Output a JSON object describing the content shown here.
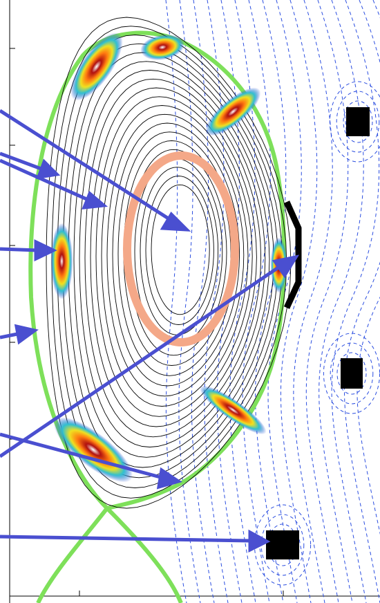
{
  "diagram": {
    "colors": {
      "background": "#ffffff",
      "axis": "#000000",
      "flux_solid": "#000000",
      "flux_dashed": "#2a4de0",
      "separatrix": "#7ee05a",
      "ring": "#f4a888",
      "arrow": "#4a4fd0",
      "coil": "#000000",
      "antenna": "#000000",
      "hot_core": "#b01010",
      "hot_mid": "#f0d020",
      "hot_outer": "#2040d0"
    },
    "icons": {
      "coil": "square-coil-icon",
      "antenna": "bracket-antenna-icon",
      "arrow": "arrow-icon"
    },
    "elements": {
      "flux_surfaces": 20,
      "hot_spots": 7,
      "arrows": 8,
      "coils": 3
    }
  }
}
